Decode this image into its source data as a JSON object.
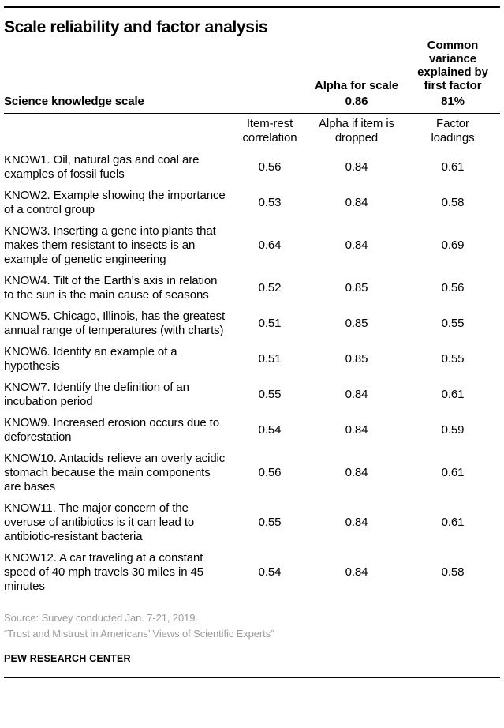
{
  "title": "Scale reliability and factor analysis",
  "header": {
    "alpha_label": "Alpha for scale",
    "variance_label": "Common variance explained by first factor",
    "scale_name": "Science knowledge scale",
    "alpha_value": "0.86",
    "variance_value": "81%"
  },
  "columns": {
    "item_rest": "Item-rest correlation",
    "alpha_dropped": "Alpha if item is dropped",
    "factor_loadings": "Factor loadings"
  },
  "chart_data": {
    "type": "table",
    "title": "Scale reliability and factor analysis",
    "scale_summary": {
      "label": "Science knowledge scale",
      "alpha_for_scale": "0.86",
      "common_variance_explained_by_first_factor": "81%"
    },
    "column_headers": [
      "Item-rest correlation",
      "Alpha if item is dropped",
      "Factor loadings"
    ],
    "rows": [
      {
        "item": "KNOW1. Oil, natural gas and coal are examples of fossil fuels",
        "item_rest": "0.56",
        "alpha_dropped": "0.84",
        "factor_loading": "0.61"
      },
      {
        "item": "KNOW2. Example showing the importance of a control group",
        "item_rest": "0.53",
        "alpha_dropped": "0.84",
        "factor_loading": "0.58"
      },
      {
        "item": "KNOW3. Inserting a gene into plants that makes them resistant to insects is an example of genetic engineering",
        "item_rest": "0.64",
        "alpha_dropped": "0.84",
        "factor_loading": "0.69"
      },
      {
        "item": "KNOW4. Tilt of the Earth's axis in relation to the sun is the main cause of seasons",
        "item_rest": "0.52",
        "alpha_dropped": "0.85",
        "factor_loading": "0.56"
      },
      {
        "item": "KNOW5. Chicago, Illinois, has the greatest annual range of temperatures (with charts)",
        "item_rest": "0.51",
        "alpha_dropped": "0.85",
        "factor_loading": "0.55"
      },
      {
        "item": "KNOW6. Identify an example of a hypothesis",
        "item_rest": "0.51",
        "alpha_dropped": "0.85",
        "factor_loading": "0.55"
      },
      {
        "item": "KNOW7. Identify the definition of an incubation period",
        "item_rest": "0.55",
        "alpha_dropped": "0.84",
        "factor_loading": "0.61"
      },
      {
        "item": "KNOW9. Increased erosion occurs due to deforestation",
        "item_rest": "0.54",
        "alpha_dropped": "0.84",
        "factor_loading": "0.59"
      },
      {
        "item": "KNOW10. Antacids relieve an overly acidic stomach because the main components are bases",
        "item_rest": "0.56",
        "alpha_dropped": "0.84",
        "factor_loading": "0.61"
      },
      {
        "item": "KNOW11. The major concern of the overuse of antibiotics is it can lead to antibiotic-resistant bacteria",
        "item_rest": "0.55",
        "alpha_dropped": "0.84",
        "factor_loading": "0.61"
      },
      {
        "item": "KNOW12. A car traveling at a constant speed of 40 mph travels 30 miles in 45 minutes",
        "item_rest": "0.54",
        "alpha_dropped": "0.84",
        "factor_loading": "0.58"
      }
    ]
  },
  "footer": {
    "source": "Source: Survey conducted Jan. 7-21, 2019.",
    "note": "“Trust and Mistrust in Americans’ Views of Scientific Experts”",
    "brand": "PEW RESEARCH CENTER"
  },
  "colors": {
    "text": "#000000",
    "source_text": "#9a9a9a",
    "rules": "#000000",
    "background": "#ffffff"
  }
}
